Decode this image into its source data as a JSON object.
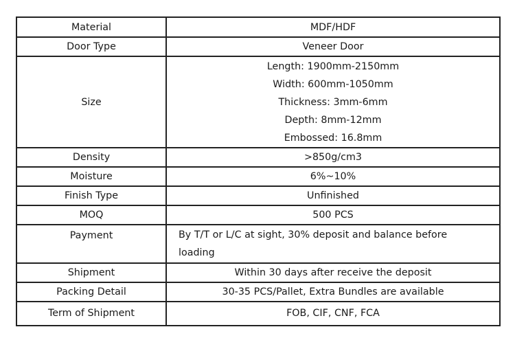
{
  "rows": [
    {
      "label": "Material",
      "value": "MDF/HDF"
    },
    {
      "label": "Door Type",
      "value": "Veneer Door"
    },
    {
      "label": "Size",
      "lines": [
        "Length: 1900mm-2150mm",
        "Width: 600mm-1050mm",
        "Thickness: 3mm-6mm",
        "Depth: 8mm-12mm",
        "Embossed: 16.8mm"
      ]
    },
    {
      "label": "Density",
      "value": ">850g/cm3"
    },
    {
      "label": "Moisture",
      "value": "6%~10%"
    },
    {
      "label": "Finish Type",
      "value": "Unfinished"
    },
    {
      "label": "MOQ",
      "value": "500 PCS"
    },
    {
      "label": "Payment",
      "lines": [
        "By T/T or L/C at sight, 30% deposit and balance before",
        "loading"
      ]
    },
    {
      "label": "Shipment",
      "value": "Within 30 days after receive the deposit"
    },
    {
      "label": "Packing Detail",
      "value": "30-35 PCS/Pallet, Extra Bundles are available"
    },
    {
      "label": "Term of Shipment",
      "value": "FOB, CIF, CNF, FCA"
    }
  ]
}
